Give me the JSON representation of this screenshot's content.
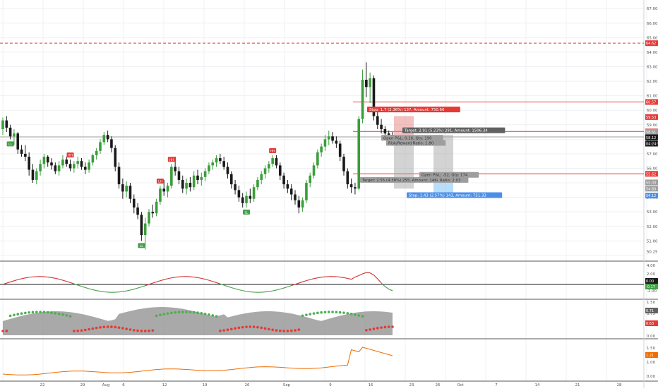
{
  "colors": {
    "bg": "#ffffff",
    "grid": "#eef0f3",
    "up": "#3a9e3a",
    "down": "#1a1a1a",
    "red_line": "#e53935",
    "gray_line": "#9e9e9e",
    "stop_label": "#e53935",
    "target_label": "#616161",
    "blue_label": "#4d8fe8",
    "osc_red": "#d32f2f",
    "osc_green": "#43a047",
    "orange": "#ef6c00",
    "area": "#8c8c8c",
    "dot_green": "#4caf50",
    "dot_red": "#e53935"
  },
  "price_axis": {
    "ticks": [
      "67.00",
      "66.00",
      "65.00",
      "64.00",
      "63.00",
      "62.00",
      "61.00",
      "60.00",
      "59.00",
      "58.00",
      "57.00",
      "56.00",
      "55.00",
      "54.00",
      "53.00",
      "52.00",
      "51.00",
      "50.25"
    ],
    "labels": [
      {
        "text": "64.62",
        "color": "#e53935",
        "value": 64.62
      },
      {
        "text": "60.57",
        "color": "#e53935",
        "value": 60.57
      },
      {
        "text": "59.53",
        "color": "#e53935",
        "value": 59.53
      },
      {
        "text": "58.54",
        "color": "#e53935",
        "value": 58.54
      },
      {
        "text": "58.51",
        "color": "#9e9e9e",
        "value": 58.51
      },
      {
        "text": "58.16",
        "color": "#616161",
        "value": 58.16
      },
      {
        "text": "58.12",
        "color": "#1a1a1a",
        "value": 58.12
      },
      {
        "text": "04:24:54",
        "color": "#1a1a1a",
        "value": 57.7
      },
      {
        "text": "55.62",
        "color": "#e53935",
        "value": 55.62
      },
      {
        "text": "55.03",
        "color": "#9e9e9e",
        "value": 55.03
      },
      {
        "text": "54.60",
        "color": "#9e9e9e",
        "value": 54.6
      },
      {
        "text": "54.12",
        "color": "#4d8fe8",
        "value": 54.12
      }
    ]
  },
  "time_axis": [
    "22",
    "29",
    "Aug",
    "6",
    "12",
    "19",
    "26",
    "Sep",
    "9",
    "16",
    "23",
    "26",
    "Oct",
    "7",
    "14",
    "21",
    "28"
  ],
  "osc_axis": [
    "4.00",
    "2.00",
    "0.00",
    "-2.00"
  ],
  "osc_labels": [
    {
      "text": "0.00",
      "color": "#1a1a1a"
    },
    {
      "text": "-0.17",
      "color": "#43a047"
    }
  ],
  "bb_axis": [
    "1.50",
    "0.75",
    "0.43",
    "0.00"
  ],
  "bb_labels": [
    {
      "text": "0.71",
      "color": "#616161"
    },
    {
      "text": "0.63",
      "color": "#e53935"
    }
  ],
  "orange_axis": [
    "1.50",
    "1.00",
    "0.00"
  ],
  "orange_labels": [
    {
      "text": "1.21",
      "color": "#ef6c00"
    }
  ],
  "annotations": {
    "stop_top": "Stop: 1.7 (2.36%) 137, Amount: 750.66",
    "target_top": "Target: 2.91 (5.23%) 291, Amount: 1506.34",
    "pl_mid": "Open P&L: 0.16, Qty: 190",
    "risk_mid": "Risk/Reward Ratio: 1.80",
    "target_bot": "Target: 2.55 (4.38%) 255, Amount: 1464.1",
    "risk_bot": "Ratio: 2.03",
    "pl_bot": "Open P&L: -52, Qty: 174",
    "stop_bot": "Stop: 1.43 (2.57%) 143, Amount: 751.33"
  },
  "chart_data": {
    "type": "candlestick",
    "x_labels": [
      "22",
      "29",
      "Aug",
      "6",
      "12",
      "19",
      "26",
      "Sep",
      "9",
      "16",
      "23",
      "26",
      "Oct",
      "7",
      "14",
      "21",
      "28"
    ],
    "ylim": [
      49.8,
      67.4
    ],
    "candles": [
      [
        58.7,
        59.5,
        58.3,
        59.3
      ],
      [
        59.3,
        59.6,
        58.5,
        58.8
      ],
      [
        58.8,
        59.0,
        58.0,
        58.2
      ],
      [
        58.2,
        58.7,
        57.6,
        58.4
      ],
      [
        58.4,
        58.5,
        57.0,
        57.3
      ],
      [
        57.3,
        57.6,
        56.8,
        57.0
      ],
      [
        57.0,
        57.6,
        56.5,
        56.8
      ],
      [
        56.8,
        57.1,
        55.5,
        55.9
      ],
      [
        55.9,
        56.3,
        55.0,
        55.2
      ],
      [
        55.2,
        56.0,
        54.9,
        55.8
      ],
      [
        55.8,
        56.6,
        55.5,
        56.3
      ],
      [
        56.3,
        57.0,
        56.0,
        56.8
      ],
      [
        56.8,
        56.9,
        56.1,
        56.4
      ],
      [
        56.4,
        56.7,
        55.9,
        56.2
      ],
      [
        56.2,
        56.4,
        55.6,
        55.8
      ],
      [
        55.8,
        56.5,
        55.5,
        56.2
      ],
      [
        56.2,
        56.9,
        56.0,
        56.6
      ],
      [
        56.6,
        56.8,
        56.1,
        56.3
      ],
      [
        56.3,
        56.6,
        55.8,
        56.0
      ],
      [
        56.0,
        56.5,
        55.7,
        56.3
      ],
      [
        56.3,
        56.8,
        56.0,
        56.5
      ],
      [
        56.5,
        56.7,
        55.9,
        56.1
      ],
      [
        56.1,
        56.4,
        55.6,
        55.9
      ],
      [
        55.9,
        56.6,
        55.7,
        56.4
      ],
      [
        56.4,
        57.0,
        56.2,
        56.9
      ],
      [
        56.9,
        57.4,
        56.6,
        57.2
      ],
      [
        57.2,
        58.0,
        57.0,
        57.8
      ],
      [
        57.8,
        58.5,
        57.6,
        58.3
      ],
      [
        58.3,
        58.6,
        57.8,
        58.0
      ],
      [
        58.0,
        58.2,
        57.1,
        57.4
      ],
      [
        57.4,
        57.6,
        55.8,
        56.1
      ],
      [
        56.1,
        56.4,
        54.6,
        54.9
      ],
      [
        54.9,
        55.3,
        53.9,
        54.4
      ],
      [
        54.4,
        55.1,
        54.0,
        54.8
      ],
      [
        54.8,
        55.0,
        53.6,
        53.9
      ],
      [
        53.9,
        54.2,
        52.9,
        53.3
      ],
      [
        53.3,
        53.6,
        52.5,
        52.8
      ],
      [
        52.8,
        53.0,
        51.0,
        51.4
      ],
      [
        51.4,
        52.6,
        50.4,
        52.2
      ],
      [
        52.2,
        53.2,
        52.0,
        53.0
      ],
      [
        53.0,
        53.5,
        52.6,
        52.9
      ],
      [
        52.9,
        53.9,
        52.7,
        53.7
      ],
      [
        53.7,
        54.8,
        53.5,
        54.6
      ],
      [
        54.6,
        55.2,
        54.1,
        54.4
      ],
      [
        54.4,
        55.0,
        54.0,
        54.8
      ],
      [
        54.8,
        56.3,
        54.6,
        56.1
      ],
      [
        56.1,
        56.8,
        55.5,
        55.8
      ],
      [
        55.8,
        56.1,
        54.9,
        55.2
      ],
      [
        55.2,
        55.5,
        54.3,
        54.6
      ],
      [
        54.6,
        55.3,
        54.2,
        55.0
      ],
      [
        55.0,
        55.4,
        54.4,
        54.7
      ],
      [
        54.7,
        55.8,
        54.5,
        55.5
      ],
      [
        55.5,
        55.9,
        54.9,
        55.2
      ],
      [
        55.2,
        55.7,
        54.8,
        55.4
      ],
      [
        55.4,
        56.0,
        55.1,
        55.8
      ],
      [
        55.8,
        56.4,
        55.6,
        56.2
      ],
      [
        56.2,
        56.6,
        55.9,
        56.4
      ],
      [
        56.4,
        56.9,
        56.1,
        56.7
      ],
      [
        56.7,
        57.0,
        56.3,
        56.5
      ],
      [
        56.5,
        56.8,
        55.9,
        56.1
      ],
      [
        56.1,
        56.4,
        55.3,
        55.6
      ],
      [
        55.6,
        55.8,
        54.6,
        54.9
      ],
      [
        54.9,
        55.2,
        54.2,
        54.5
      ],
      [
        54.5,
        54.8,
        53.7,
        54.0
      ],
      [
        54.0,
        54.3,
        53.3,
        53.6
      ],
      [
        53.6,
        54.4,
        53.3,
        54.1
      ],
      [
        54.1,
        54.6,
        53.6,
        53.9
      ],
      [
        53.9,
        54.9,
        53.7,
        54.7
      ],
      [
        54.7,
        55.4,
        54.5,
        55.2
      ],
      [
        55.2,
        55.8,
        54.9,
        55.6
      ],
      [
        55.6,
        56.2,
        55.3,
        56.0
      ],
      [
        56.0,
        56.5,
        55.7,
        56.3
      ],
      [
        56.3,
        56.9,
        56.1,
        56.7
      ],
      [
        56.7,
        56.9,
        56.0,
        56.2
      ],
      [
        56.2,
        56.4,
        55.2,
        55.5
      ],
      [
        55.5,
        55.7,
        54.6,
        54.9
      ],
      [
        54.9,
        55.2,
        54.3,
        54.6
      ],
      [
        54.6,
        54.9,
        53.8,
        54.2
      ],
      [
        54.2,
        54.5,
        53.5,
        53.8
      ],
      [
        53.8,
        54.1,
        52.9,
        53.3
      ],
      [
        53.3,
        54.0,
        53.0,
        53.8
      ],
      [
        53.8,
        55.2,
        53.6,
        55.0
      ],
      [
        55.0,
        55.7,
        54.7,
        55.5
      ],
      [
        55.5,
        56.4,
        55.3,
        56.2
      ],
      [
        56.2,
        57.3,
        56.0,
        57.1
      ],
      [
        57.1,
        57.7,
        56.8,
        57.5
      ],
      [
        57.5,
        58.3,
        57.2,
        58.0
      ],
      [
        58.0,
        58.6,
        57.6,
        58.2
      ],
      [
        58.2,
        58.5,
        57.7,
        57.9
      ],
      [
        57.9,
        58.2,
        57.4,
        57.7
      ],
      [
        57.7,
        57.9,
        56.5,
        56.8
      ],
      [
        56.8,
        57.0,
        55.5,
        55.8
      ],
      [
        55.8,
        56.0,
        54.6,
        54.9
      ],
      [
        54.9,
        55.3,
        54.3,
        54.7
      ],
      [
        54.7,
        55.0,
        54.2,
        54.6
      ],
      [
        54.6,
        59.6,
        54.5,
        59.4
      ],
      [
        59.4,
        62.8,
        59.1,
        62.1
      ],
      [
        62.1,
        63.3,
        60.9,
        61.6
      ],
      [
        61.6,
        62.6,
        60.5,
        62.2
      ],
      [
        62.2,
        62.4,
        59.3,
        59.6
      ],
      [
        59.6,
        60.0,
        58.7,
        59.0
      ],
      [
        59.0,
        59.4,
        58.4,
        58.7
      ],
      [
        58.7,
        58.9,
        58.2,
        58.4
      ],
      [
        58.4,
        58.6,
        58.0,
        58.3
      ],
      [
        58.3,
        58.5,
        57.9,
        58.12
      ]
    ],
    "markers": [
      {
        "index": 18,
        "label": "HH",
        "color": "#e53935"
      },
      {
        "index": 37,
        "label": "LL",
        "color": "#43a047"
      },
      {
        "index": 42,
        "label": "LH",
        "color": "#e53935"
      },
      {
        "index": 45,
        "label": "HH",
        "color": "#e53935"
      },
      {
        "index": 65,
        "label": "LL",
        "color": "#43a047"
      },
      {
        "index": 72,
        "label": "HH",
        "color": "#e53935"
      },
      {
        "index": 2,
        "label": "LL",
        "color": "#43a047"
      }
    ],
    "hlines": [
      {
        "value": 64.62,
        "color": "#e53935",
        "dash": true
      },
      {
        "value": 60.57,
        "color": "#e53935",
        "dash": false
      },
      {
        "value": 58.54,
        "color": "#e53935",
        "dash": false
      },
      {
        "value": 58.16,
        "color": "#9e9e9e",
        "dash": false
      },
      {
        "value": 55.62,
        "color": "#e53935",
        "dash": false
      }
    ]
  }
}
